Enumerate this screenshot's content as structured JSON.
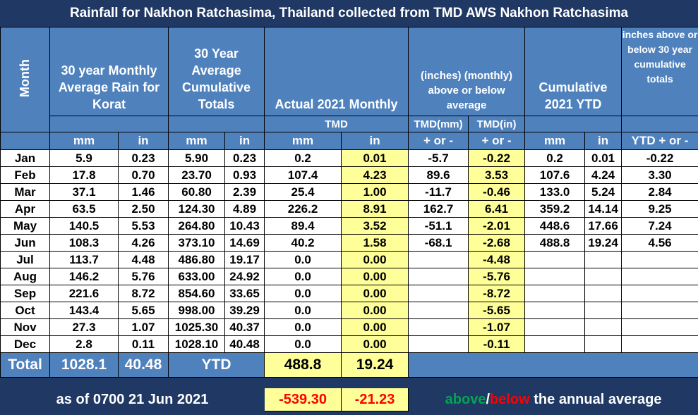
{
  "title": "Rainfall for Nakhon Ratchasima, Thailand collected from TMD AWS Nakhon Ratchasima",
  "headers": {
    "month": "Month",
    "avg_rain": "30 year Monthly Average Rain for Korat",
    "avg_cum": "30 Year Average Cumulative Totals",
    "actual": "Actual 2021 Monthly",
    "above_below": "(inches) (monthly) above or below average",
    "cum_ytd": "Cumulative 2021 YTD",
    "inches_30yr": "inches above or below 30 year cumulative totals",
    "tmd": "TMD",
    "tmd_mm": "TMD(mm)",
    "tmd_in": "TMD(in)",
    "mm": "mm",
    "in": "in",
    "plus_minus": "+ or -",
    "ytd_plus_minus": "YTD + or -"
  },
  "rows": [
    {
      "month": "Jan",
      "avg_mm": "5.9",
      "avg_in": "0.23",
      "cum_mm": "5.90",
      "cum_in": "0.23",
      "act_mm": "0.2",
      "act_in": "0.01",
      "diff_mm": "-5.7",
      "diff_in": "-0.22",
      "ytd_mm": "0.2",
      "ytd_in": "0.01",
      "ytd_diff": "-0.22"
    },
    {
      "month": "Feb",
      "avg_mm": "17.8",
      "avg_in": "0.70",
      "cum_mm": "23.70",
      "cum_in": "0.93",
      "act_mm": "107.4",
      "act_in": "4.23",
      "diff_mm": "89.6",
      "diff_in": "3.53",
      "ytd_mm": "107.6",
      "ytd_in": "4.24",
      "ytd_diff": "3.30"
    },
    {
      "month": "Mar",
      "avg_mm": "37.1",
      "avg_in": "1.46",
      "cum_mm": "60.80",
      "cum_in": "2.39",
      "act_mm": "25.4",
      "act_in": "1.00",
      "diff_mm": "-11.7",
      "diff_in": "-0.46",
      "ytd_mm": "133.0",
      "ytd_in": "5.24",
      "ytd_diff": "2.84"
    },
    {
      "month": "Apr",
      "avg_mm": "63.5",
      "avg_in": "2.50",
      "cum_mm": "124.30",
      "cum_in": "4.89",
      "act_mm": "226.2",
      "act_in": "8.91",
      "diff_mm": "162.7",
      "diff_in": "6.41",
      "ytd_mm": "359.2",
      "ytd_in": "14.14",
      "ytd_diff": "9.25"
    },
    {
      "month": "May",
      "avg_mm": "140.5",
      "avg_in": "5.53",
      "cum_mm": "264.80",
      "cum_in": "10.43",
      "act_mm": "89.4",
      "act_in": "3.52",
      "diff_mm": "-51.1",
      "diff_in": "-2.01",
      "ytd_mm": "448.6",
      "ytd_in": "17.66",
      "ytd_diff": "7.24"
    },
    {
      "month": "Jun",
      "avg_mm": "108.3",
      "avg_in": "4.26",
      "cum_mm": "373.10",
      "cum_in": "14.69",
      "act_mm": "40.2",
      "act_in": "1.58",
      "diff_mm": "-68.1",
      "diff_in": "-2.68",
      "ytd_mm": "488.8",
      "ytd_in": "19.24",
      "ytd_diff": "4.56"
    },
    {
      "month": "Jul",
      "avg_mm": "113.7",
      "avg_in": "4.48",
      "cum_mm": "486.80",
      "cum_in": "19.17",
      "act_mm": "0.0",
      "act_in": "0.00",
      "diff_mm": "",
      "diff_in": "-4.48",
      "ytd_mm": "",
      "ytd_in": "",
      "ytd_diff": ""
    },
    {
      "month": "Aug",
      "avg_mm": "146.2",
      "avg_in": "5.76",
      "cum_mm": "633.00",
      "cum_in": "24.92",
      "act_mm": "0.0",
      "act_in": "0.00",
      "diff_mm": "",
      "diff_in": "-5.76",
      "ytd_mm": "",
      "ytd_in": "",
      "ytd_diff": ""
    },
    {
      "month": "Sep",
      "avg_mm": "221.6",
      "avg_in": "8.72",
      "cum_mm": "854.60",
      "cum_in": "33.65",
      "act_mm": "0.0",
      "act_in": "0.00",
      "diff_mm": "",
      "diff_in": "-8.72",
      "ytd_mm": "",
      "ytd_in": "",
      "ytd_diff": ""
    },
    {
      "month": "Oct",
      "avg_mm": "143.4",
      "avg_in": "5.65",
      "cum_mm": "998.00",
      "cum_in": "39.29",
      "act_mm": "0.0",
      "act_in": "0.00",
      "diff_mm": "",
      "diff_in": "-5.65",
      "ytd_mm": "",
      "ytd_in": "",
      "ytd_diff": ""
    },
    {
      "month": "Nov",
      "avg_mm": "27.3",
      "avg_in": "1.07",
      "cum_mm": "1025.30",
      "cum_in": "40.37",
      "act_mm": "0.0",
      "act_in": "0.00",
      "diff_mm": "",
      "diff_in": "-1.07",
      "ytd_mm": "",
      "ytd_in": "",
      "ytd_diff": ""
    },
    {
      "month": "Dec",
      "avg_mm": "2.8",
      "avg_in": "0.11",
      "cum_mm": "1028.10",
      "cum_in": "40.48",
      "act_mm": "0.0",
      "act_in": "0.00",
      "diff_mm": "",
      "diff_in": "-0.11",
      "ytd_mm": "",
      "ytd_in": "",
      "ytd_diff": ""
    }
  ],
  "total": {
    "label": "Total",
    "avg_mm": "1028.1",
    "avg_in": "40.48",
    "ytd_label": "YTD",
    "act_mm": "488.8",
    "act_in": "19.24"
  },
  "footer": {
    "as_of": "as of 0700 21 Jun 2021",
    "diff_mm": "-539.30",
    "diff_in": "-21.23",
    "above": "above",
    "slash": "/",
    "below": "below",
    "legend_rest": " the annual average"
  },
  "colors": {
    "header_blue": "#4f81bd",
    "navy": "#1f3864",
    "highlight_yellow": "#ffff99",
    "positive_green": "#00a651",
    "negative_red": "#ff0000"
  }
}
